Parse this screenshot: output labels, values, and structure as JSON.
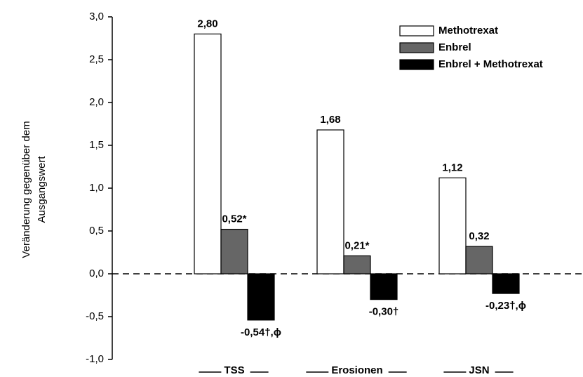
{
  "chart_data": {
    "type": "bar",
    "ylabel": [
      "Veränderung gegenüber dem",
      "Ausgangswert"
    ],
    "categories": [
      "TSS",
      "Erosionen",
      "JSN"
    ],
    "series": [
      {
        "name": "Methotrexat",
        "color": "#ffffff",
        "values": [
          2.8,
          1.68,
          1.12
        ],
        "value_labels": [
          "2,80",
          "1,68",
          "1,12"
        ]
      },
      {
        "name": "Enbrel",
        "color": "#666666",
        "values": [
          0.52,
          0.21,
          0.32
        ],
        "value_labels": [
          "0,52*",
          "0,21*",
          "0,32"
        ]
      },
      {
        "name": "Enbrel + Methotrexat",
        "color": "#000000",
        "values": [
          -0.54,
          -0.3,
          -0.23
        ],
        "value_labels": [
          "-0,54†,ϕ",
          "-0,30†",
          "-0,23†,ϕ"
        ]
      }
    ],
    "ylim": [
      -1,
      3
    ],
    "yticks": [
      {
        "value": -1,
        "label": "-1,0"
      },
      {
        "value": -0.5,
        "label": "-0,5"
      },
      {
        "value": 0,
        "label": "0,0"
      },
      {
        "value": 0.5,
        "label": "0,5"
      },
      {
        "value": 1,
        "label": "1,0"
      },
      {
        "value": 1.5,
        "label": "1,5"
      },
      {
        "value": 2,
        "label": "2,0"
      },
      {
        "value": 2.5,
        "label": "2,5"
      },
      {
        "value": 3,
        "label": "3,0"
      }
    ],
    "legend": "top-right"
  }
}
